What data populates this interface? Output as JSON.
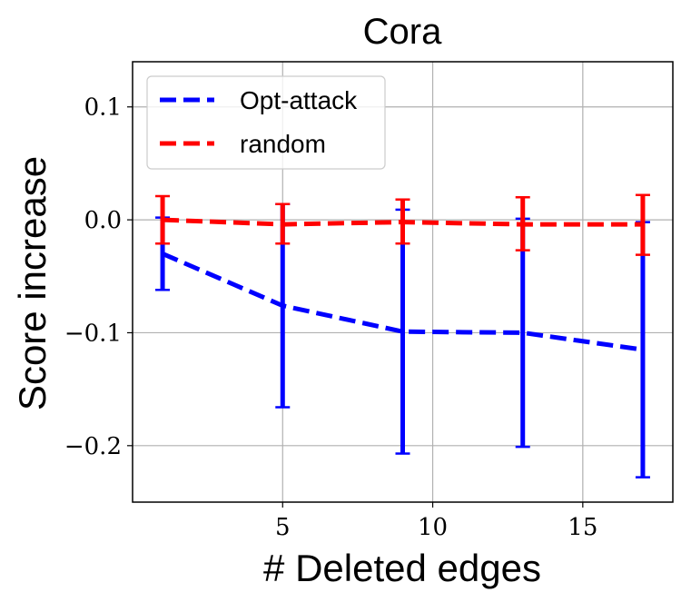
{
  "chart_data": {
    "type": "line",
    "title": "Cora",
    "xlabel": "# Deleted edges",
    "ylabel": "Score increase",
    "xlim": [
      0,
      18
    ],
    "ylim": [
      -0.25,
      0.14
    ],
    "xticks": [
      5,
      10,
      15
    ],
    "xtick_labels": [
      "5",
      "10",
      "15"
    ],
    "yticks": [
      0.1,
      0.0,
      -0.1,
      -0.2
    ],
    "ytick_labels": [
      "0.1",
      "0.0",
      "−0.1",
      "−0.2"
    ],
    "grid": true,
    "legend_position": "top-left",
    "x": [
      1,
      5,
      9,
      13,
      17
    ],
    "series": [
      {
        "name": "Opt-attack",
        "color": "#0000ff",
        "style": "dashed",
        "values": [
          -0.03,
          -0.076,
          -0.099,
          -0.1,
          -0.115
        ],
        "err_low": [
          -0.062,
          -0.166,
          -0.207,
          -0.201,
          -0.228
        ],
        "err_high": [
          0.002,
          0.014,
          0.009,
          0.001,
          -0.002
        ]
      },
      {
        "name": "random",
        "color": "#ff0000",
        "style": "dashed",
        "values": [
          0.0,
          -0.004,
          -0.002,
          -0.004,
          -0.004
        ],
        "err_low": [
          -0.021,
          -0.021,
          -0.021,
          -0.027,
          -0.031
        ],
        "err_high": [
          0.021,
          0.014,
          0.018,
          0.02,
          0.022
        ]
      }
    ]
  }
}
